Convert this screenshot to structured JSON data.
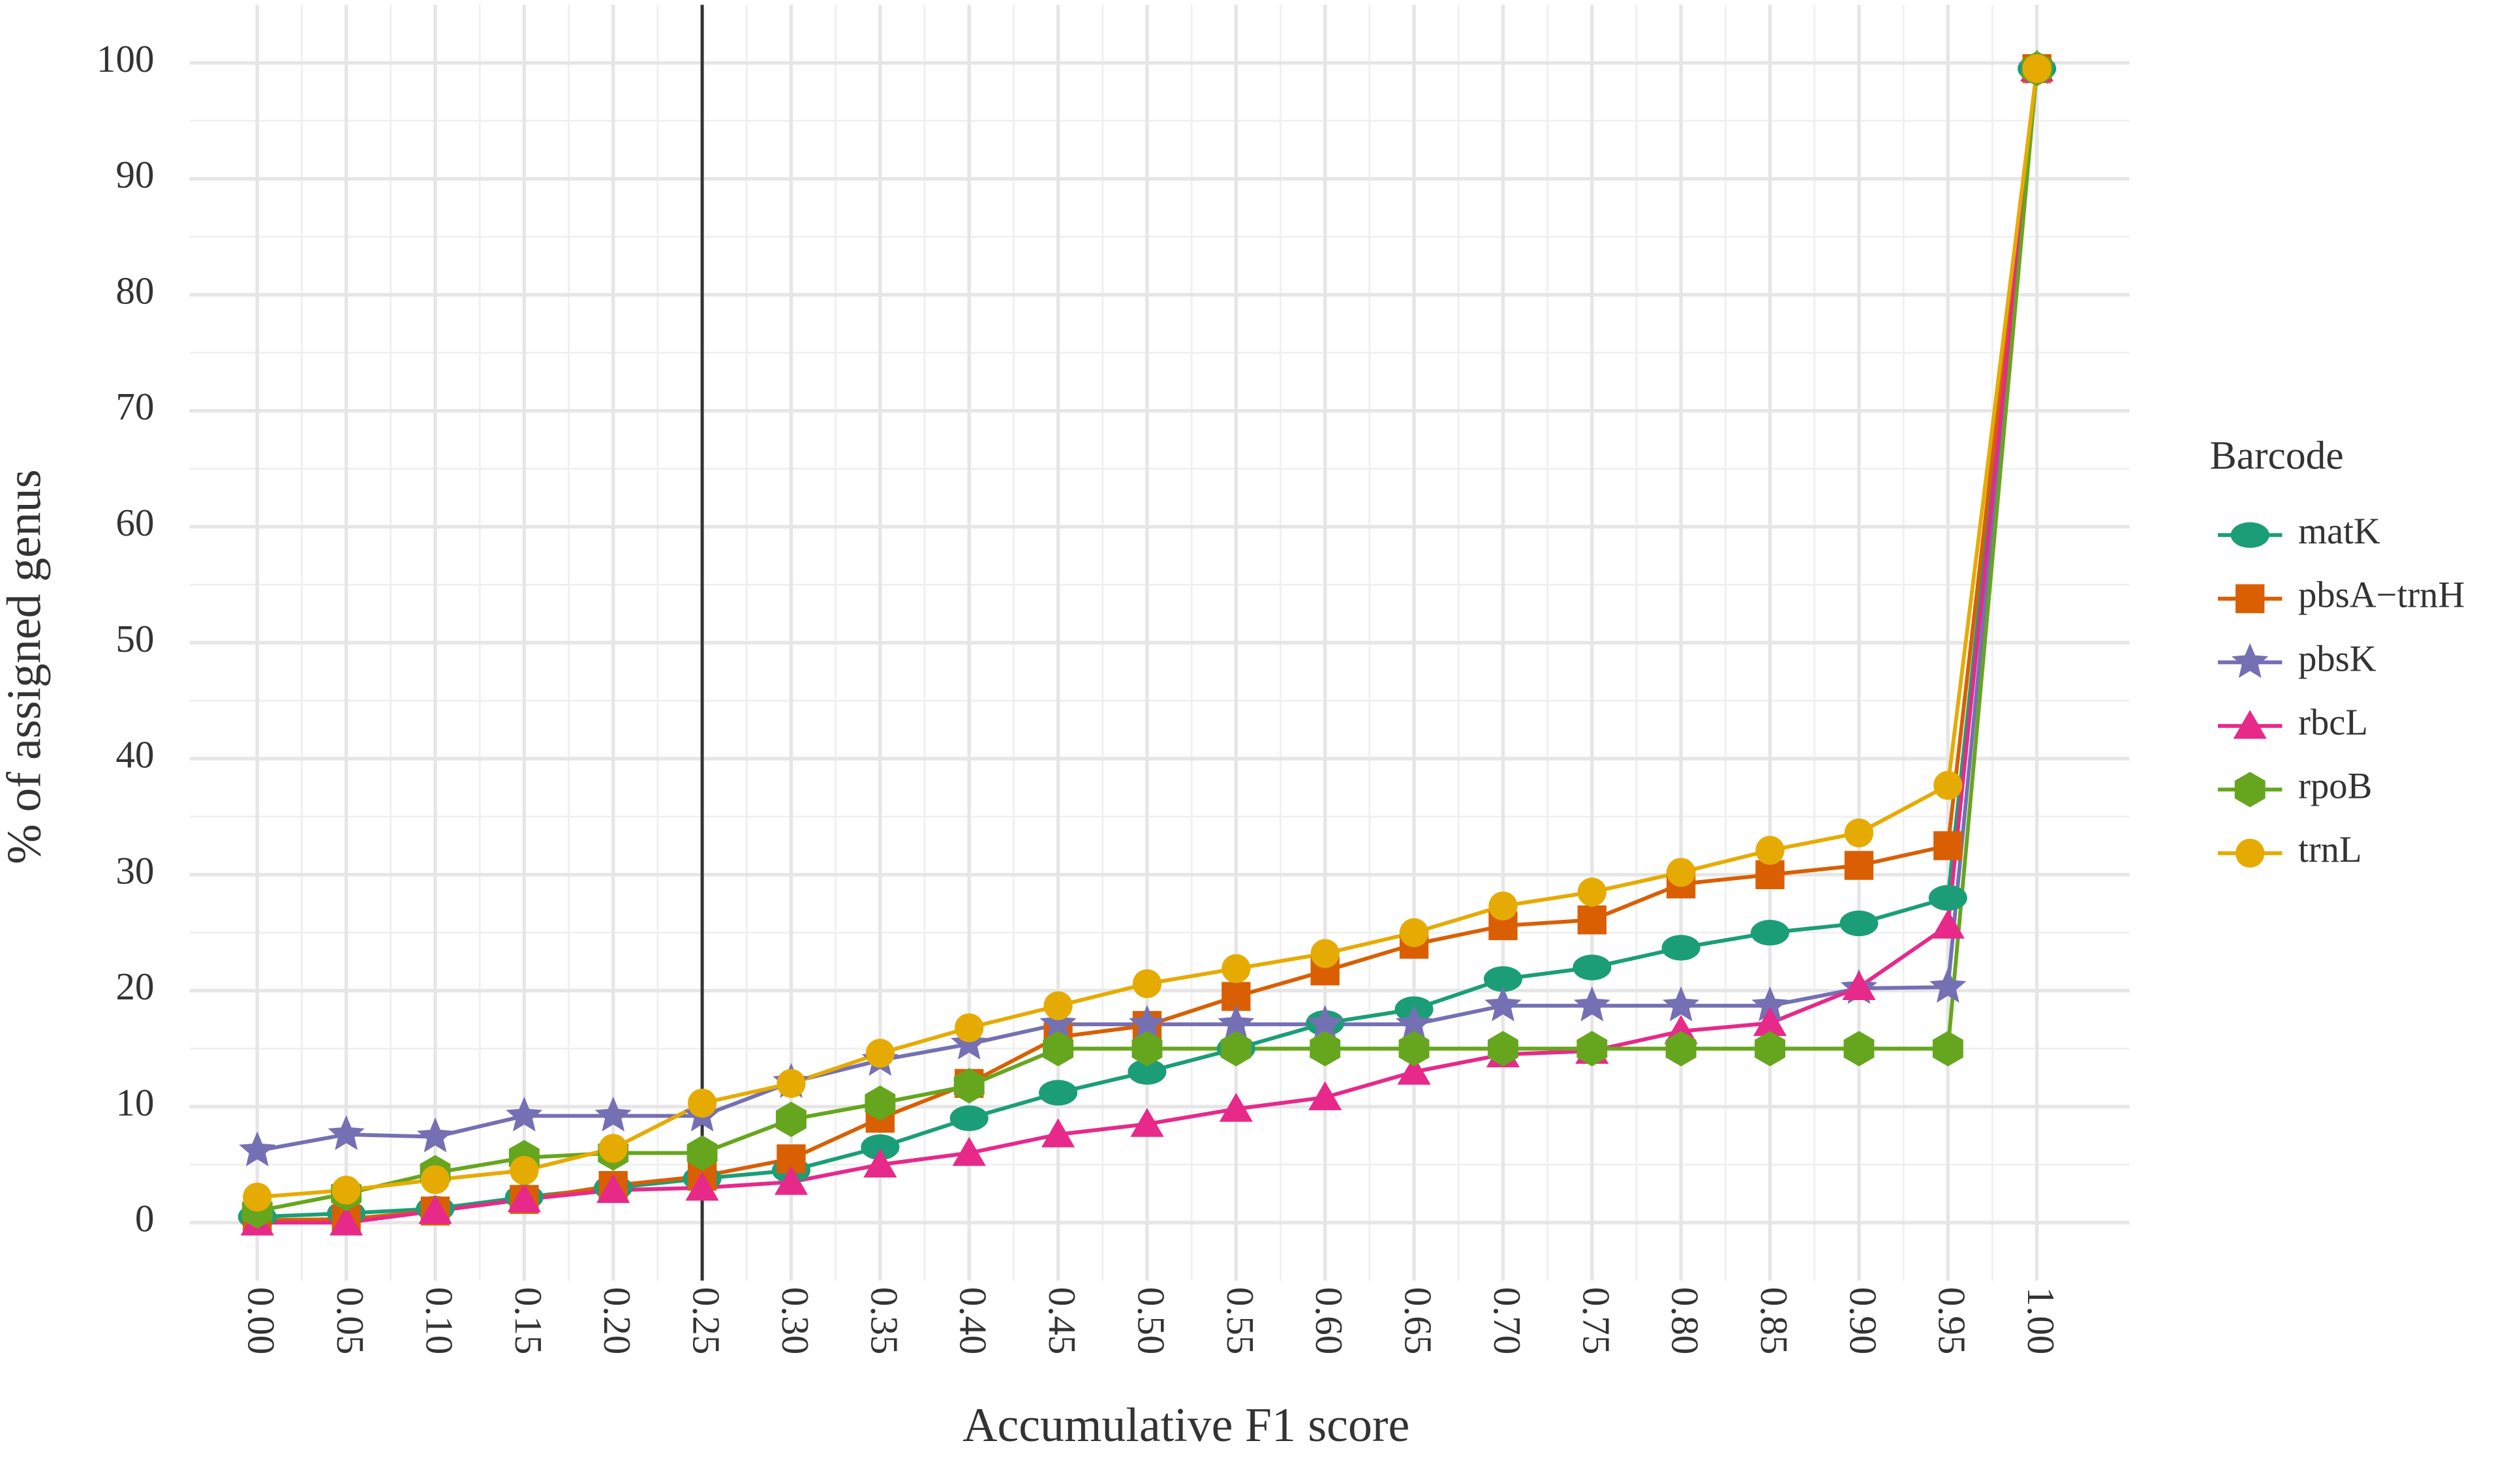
{
  "chart_data": {
    "type": "line",
    "x_label": "Accumulative F1 score",
    "y_label": "% of assigned genus",
    "legend_title": "Barcode",
    "legend_position": "right",
    "grid": true,
    "vline": 0.25,
    "xlim": [
      -0.038,
      1.052
    ],
    "ylim": [
      -5,
      105
    ],
    "xticks": [
      {
        "value": 0,
        "label": "0.00"
      },
      {
        "value": 0.05,
        "label": "0.05"
      },
      {
        "value": 0.1,
        "label": "0.10"
      },
      {
        "value": 0.15,
        "label": "0.15"
      },
      {
        "value": 0.2,
        "label": "0.20"
      },
      {
        "value": 0.25,
        "label": "0.25"
      },
      {
        "value": 0.3,
        "label": "0.30"
      },
      {
        "value": 0.35,
        "label": "0.35"
      },
      {
        "value": 0.4,
        "label": "0.40"
      },
      {
        "value": 0.45,
        "label": "0.45"
      },
      {
        "value": 0.5,
        "label": "0.50"
      },
      {
        "value": 0.55,
        "label": "0.55"
      },
      {
        "value": 0.6,
        "label": "0.60"
      },
      {
        "value": 0.65,
        "label": "0.65"
      },
      {
        "value": 0.7,
        "label": "0.70"
      },
      {
        "value": 0.75,
        "label": "0.75"
      },
      {
        "value": 0.8,
        "label": "0.80"
      },
      {
        "value": 0.85,
        "label": "0.85"
      },
      {
        "value": 0.9,
        "label": "0.90"
      },
      {
        "value": 0.95,
        "label": "0.95"
      },
      {
        "value": 1,
        "label": "1.00"
      }
    ],
    "yticks": [
      0,
      10,
      20,
      30,
      40,
      50,
      60,
      70,
      80,
      90,
      100
    ],
    "x": [
      0,
      0.05,
      0.1,
      0.15,
      0.2,
      0.25,
      0.3,
      0.35,
      0.4,
      0.45,
      0.5,
      0.55,
      0.6,
      0.65,
      0.7,
      0.75,
      0.8,
      0.85,
      0.9,
      0.95,
      1
    ],
    "series": [
      {
        "name": "matK",
        "color": "#1b9e77",
        "shape": "ellipse",
        "values": [
          0.5,
          0.8,
          1.2,
          2.2,
          3,
          3.8,
          4.5,
          6.5,
          9,
          11.2,
          13,
          15,
          17.2,
          18.4,
          21,
          22,
          23.7,
          25,
          25.8,
          28,
          99.5
        ]
      },
      {
        "name": "pbsA−trnH",
        "color": "#d95f02",
        "shape": "square",
        "values": [
          0.2,
          0.3,
          1,
          2,
          3.2,
          4,
          5.5,
          9,
          12,
          16,
          17,
          19.5,
          21.7,
          24,
          25.6,
          26.1,
          29.2,
          30,
          30.8,
          32.5,
          99.5
        ]
      },
      {
        "name": "pbsK",
        "color": "#7570b3",
        "shape": "star",
        "values": [
          6.2,
          7.6,
          7.4,
          9.2,
          9.2,
          9.2,
          12.1,
          14,
          15.4,
          17.1,
          17.1,
          17.1,
          17.1,
          17.1,
          18.7,
          18.7,
          18.7,
          18.7,
          20.2,
          20.3,
          99.5
        ]
      },
      {
        "name": "rbcL",
        "color": "#e7298a",
        "shape": "triangle",
        "values": [
          0,
          0,
          1,
          2,
          2.8,
          3,
          3.5,
          5,
          6,
          7.6,
          8.5,
          9.8,
          10.8,
          13,
          14.5,
          14.8,
          16.5,
          17.2,
          20.3,
          25.6,
          99.5
        ]
      },
      {
        "name": "rpoB",
        "color": "#66a61e",
        "shape": "hexagon",
        "values": [
          1,
          2.5,
          4.3,
          5.6,
          6,
          6,
          8.9,
          10.3,
          11.8,
          15,
          15,
          15,
          15,
          15,
          15,
          15,
          15,
          15,
          15,
          15,
          99.5
        ]
      },
      {
        "name": "trnL",
        "color": "#e6ab02",
        "shape": "circle",
        "values": [
          2.2,
          2.8,
          3.7,
          4.5,
          6.4,
          10.3,
          12,
          14.6,
          16.8,
          18.7,
          20.6,
          21.9,
          23.2,
          25,
          27.3,
          28.5,
          30.2,
          32.1,
          33.6,
          37.7,
          99.5
        ]
      }
    ]
  }
}
